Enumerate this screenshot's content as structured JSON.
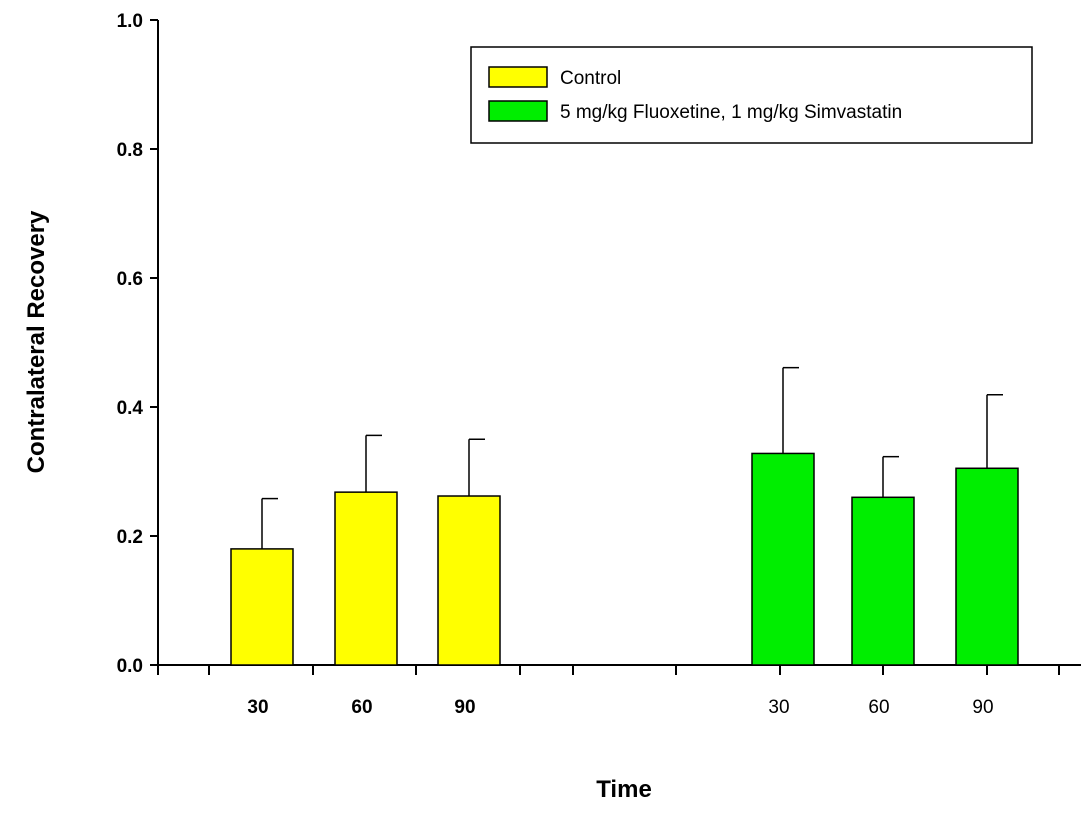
{
  "chart_data": {
    "type": "bar",
    "xlabel": "Time",
    "ylabel": "Contralateral Recovery",
    "ylim": [
      0,
      1.0
    ],
    "yticks": [
      "0.0",
      "0.2",
      "0.4",
      "0.6",
      "0.8",
      "1.0"
    ],
    "grid": false,
    "legend_position": "top-right",
    "series": [
      {
        "name": "Control",
        "color": "#ffff00",
        "categories": [
          "30",
          "60",
          "90"
        ],
        "values": [
          0.18,
          0.268,
          0.262
        ],
        "errors": [
          0.078,
          0.088,
          0.088
        ]
      },
      {
        "name": "5 mg/kg Fluoxetine, 1 mg/kg Simvastatin",
        "color": "#00ee00",
        "categories": [
          "30",
          "60",
          "90"
        ],
        "values": [
          0.328,
          0.26,
          0.305
        ],
        "errors": [
          0.133,
          0.063,
          0.114
        ]
      }
    ]
  }
}
